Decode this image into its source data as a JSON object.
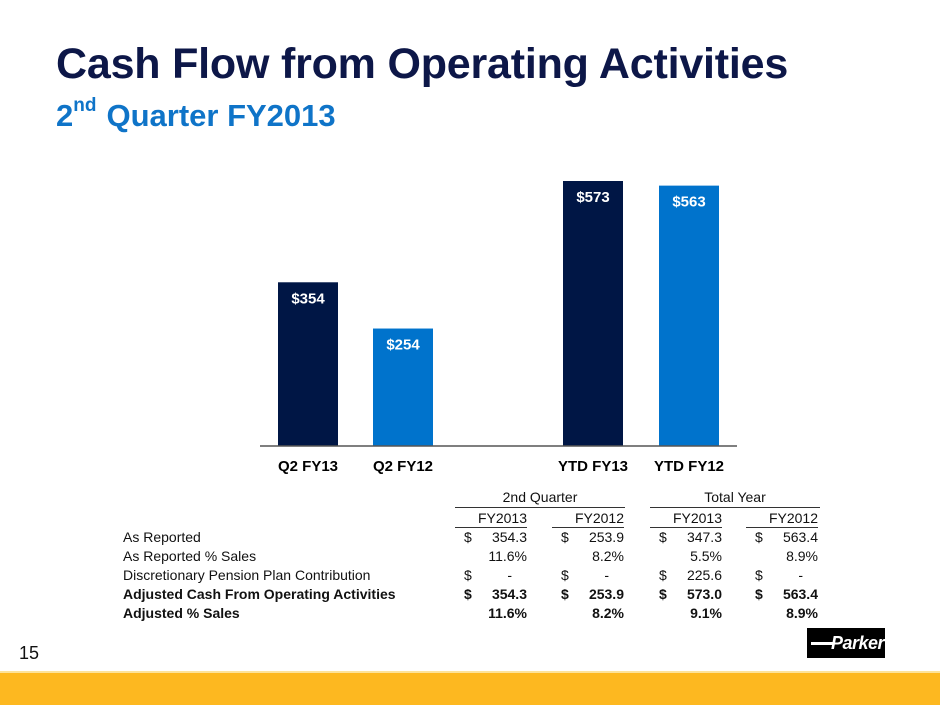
{
  "slide": {
    "title": "Cash Flow from Operating Activities",
    "subtitle_sup": "nd",
    "subtitle_prefix": "2",
    "subtitle_rest": "Quarter FY2013",
    "page_number": "15",
    "logo_text": "Parker"
  },
  "colors": {
    "title": "#0d1748",
    "subtitle": "#0f74c8",
    "dark_bar": "#001645",
    "light_bar": "#0073cc",
    "footer": "#fdb820"
  },
  "chart_data": {
    "type": "bar",
    "title": "",
    "xlabel": "",
    "ylabel": "",
    "ylim": [
      0,
      600
    ],
    "grid": false,
    "categories": [
      "Q2 FY13",
      "Q2 FY12",
      "YTD FY13",
      "YTD FY12"
    ],
    "values": [
      354,
      254,
      573,
      563
    ],
    "labels": [
      "$354",
      "$254",
      "$573",
      "$563"
    ],
    "bar_colors": [
      "#001645",
      "#0073cc",
      "#001645",
      "#0073cc"
    ]
  },
  "table": {
    "groups": [
      "2nd Quarter",
      "Total Year"
    ],
    "columns": [
      "FY2013",
      "FY2012",
      "FY2013",
      "FY2012"
    ],
    "rows": [
      {
        "label": "As Reported",
        "bold": false,
        "cells": [
          {
            "d": "$",
            "v": "354.3"
          },
          {
            "d": "$",
            "v": "253.9"
          },
          {
            "d": "$",
            "v": "347.3"
          },
          {
            "d": "$",
            "v": "563.4"
          }
        ]
      },
      {
        "label": "As Reported % Sales",
        "bold": false,
        "cells": [
          {
            "d": "",
            "v": "11.6%"
          },
          {
            "d": "",
            "v": "8.2%"
          },
          {
            "d": "",
            "v": "5.5%"
          },
          {
            "d": "",
            "v": "8.9%"
          }
        ]
      },
      {
        "label": "Discretionary Pension Plan Contribution",
        "bold": false,
        "cells": [
          {
            "d": "$",
            "v": "-"
          },
          {
            "d": "$",
            "v": "-"
          },
          {
            "d": "$",
            "v": "225.6"
          },
          {
            "d": "$",
            "v": "-"
          }
        ]
      },
      {
        "label": "Adjusted Cash From Operating Activities",
        "bold": true,
        "cells": [
          {
            "d": "$",
            "v": "354.3"
          },
          {
            "d": "$",
            "v": "253.9"
          },
          {
            "d": "$",
            "v": "573.0"
          },
          {
            "d": "$",
            "v": "563.4"
          }
        ]
      },
      {
        "label": "Adjusted % Sales",
        "bold": true,
        "cells": [
          {
            "d": "",
            "v": "11.6%"
          },
          {
            "d": "",
            "v": "8.2%"
          },
          {
            "d": "",
            "v": "9.1%"
          },
          {
            "d": "",
            "v": "8.9%"
          }
        ]
      }
    ]
  }
}
